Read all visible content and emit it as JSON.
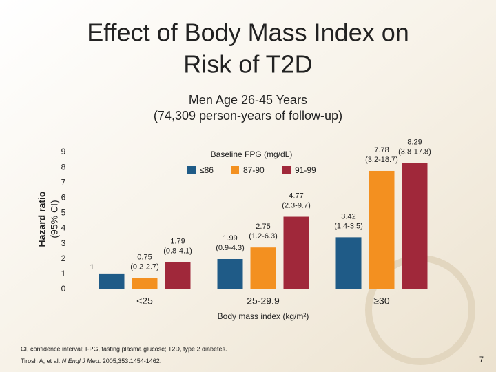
{
  "chart_data": {
    "type": "bar",
    "title": [
      "Effect of Body Mass Index on",
      "Risk of T2D"
    ],
    "subtitle": [
      "Men Age 26-45 Years",
      "(74,309 person-years of follow-up)"
    ],
    "y_label": [
      "Hazard ratio",
      "(95% CI)"
    ],
    "x_label": "Body mass index (kg/m²)",
    "legend_title": "Baseline FPG (mg/dL)",
    "categories": [
      "<25",
      "25-29.9",
      "≥30"
    ],
    "series": [
      {
        "name": "≤86",
        "color": "#1f5b87",
        "values": [
          1,
          1.99,
          3.42
        ],
        "ci_labels": [
          null,
          "(0.9-4.3)",
          "(1.4-3.5)"
        ]
      },
      {
        "name": "87-90",
        "color": "#f39020",
        "values": [
          0.75,
          2.75,
          7.78
        ],
        "ci_labels": [
          "(0.2-2.7)",
          "(1.2-6.3)",
          "(3.2-18.7)"
        ]
      },
      {
        "name": "91-99",
        "color": "#a0283a",
        "values": [
          1.79,
          4.77,
          8.29
        ],
        "ci_labels": [
          "(0.8-4.1)",
          "(2.3-9.7)",
          "(3.8-17.8)"
        ]
      }
    ],
    "ylim": [
      0,
      9
    ],
    "yticks": [
      0,
      1,
      2,
      3,
      4,
      5,
      6,
      7,
      8,
      9
    ],
    "grid": false,
    "footnote": "CI, confidence interval; FPG, fasting plasma glucose; T2D, type 2 diabetes.",
    "citation": [
      "Tirosh A, et al. ",
      "N Engl J Med",
      ". 2005;353:1454-1462."
    ],
    "page_number": "7"
  }
}
